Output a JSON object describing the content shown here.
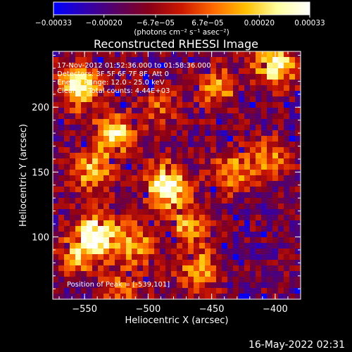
{
  "chart_data": {
    "type": "heatmap",
    "title": "Reconstructed RHESSI Image",
    "xlabel": "Heliocentric X (arcsec)",
    "ylabel": "Heliocentric Y (arcsec)",
    "xlim": [
      -575,
      -380
    ],
    "ylim": [
      52,
      243
    ],
    "x_ticks": [
      -550,
      -500,
      -450,
      -400
    ],
    "x_tick_labels": [
      "−550",
      "−500",
      "−450",
      "−400"
    ],
    "y_ticks": [
      100,
      150,
      200
    ],
    "y_tick_labels": [
      "100",
      "150",
      "200"
    ],
    "colorbar": {
      "range": [
        -0.00033,
        0.00033
      ],
      "tick_labels": [
        "−0.00033",
        "−0.00020",
        "−6.7e−05",
        "6.7e−05",
        "0.00020",
        "0.00033"
      ],
      "tick_values": [
        -0.00033,
        -0.0002,
        -6.7e-05,
        6.7e-05,
        0.0002,
        0.00033
      ],
      "units": "(photons cm⁻² s⁻¹ asec⁻²)",
      "colors": [
        "#0000ff",
        "#3000b0",
        "#5a0060",
        "#8a0018",
        "#cc1800",
        "#ff6a00",
        "#ffc000",
        "#ffffa0",
        "#ffffff"
      ]
    },
    "annotations": [
      "17-Nov-2012 01:52:36.000 to 01:58:36.000",
      "Detectors: 3F 5F 6F 7F 8F, Att 0",
      "Energy Range: 12.0 - 25.0 keV",
      "Clean     Total counts: 4.44E+03",
      "Position of Peak = [-539,101]"
    ],
    "peak": {
      "x": -539,
      "y": 101
    },
    "sources": [
      {
        "x": -485,
        "y": 140,
        "intensity": 1.0
      },
      {
        "x": -540,
        "y": 102,
        "intensity": 1.0
      },
      {
        "x": -555,
        "y": 215,
        "intensity": 0.85
      },
      {
        "x": -527,
        "y": 178,
        "intensity": 0.8
      },
      {
        "x": -545,
        "y": 150,
        "intensity": 0.6
      },
      {
        "x": -510,
        "y": 95,
        "intensity": 0.55
      },
      {
        "x": -400,
        "y": 232,
        "intensity": 0.85
      },
      {
        "x": -445,
        "y": 215,
        "intensity": 0.5
      },
      {
        "x": -460,
        "y": 75,
        "intensity": 0.6
      },
      {
        "x": -435,
        "y": 150,
        "intensity": 0.55
      },
      {
        "x": -405,
        "y": 160,
        "intensity": 0.45
      },
      {
        "x": -520,
        "y": 60,
        "intensity": 0.4
      },
      {
        "x": -490,
        "y": 200,
        "intensity": 0.35
      },
      {
        "x": -555,
        "y": 85,
        "intensity": 0.5
      },
      {
        "x": -470,
        "y": 110,
        "intensity": 0.55
      }
    ]
  },
  "footer_timestamp": "16-May-2022 02:31"
}
